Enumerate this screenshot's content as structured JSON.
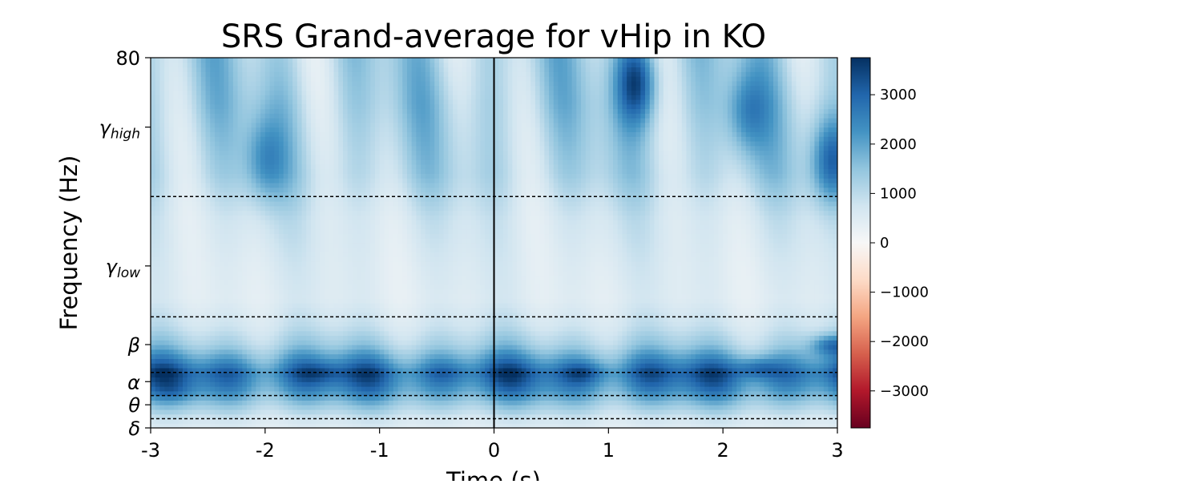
{
  "chart_data": {
    "type": "heatmap",
    "title": "SRS Grand-average for vHip in KO",
    "xlabel": "Time (s)",
    "ylabel": "Frequency (Hz)",
    "xlim": [
      -3,
      3
    ],
    "ylim": [
      0,
      80
    ],
    "x_ticks": [
      {
        "value": -3,
        "label": "-3"
      },
      {
        "value": -2,
        "label": "-2"
      },
      {
        "value": -1,
        "label": "-1"
      },
      {
        "value": 0,
        "label": "0"
      },
      {
        "value": 1,
        "label": "1"
      },
      {
        "value": 2,
        "label": "2"
      },
      {
        "value": 3,
        "label": "3"
      }
    ],
    "y_ticks": [
      {
        "value": 80,
        "label": "80",
        "sub": ""
      },
      {
        "value": 65,
        "label": "γ",
        "sub": "high"
      },
      {
        "value": 35,
        "label": "γ",
        "sub": "low"
      },
      {
        "value": 18,
        "label": "β",
        "sub": ""
      },
      {
        "value": 10,
        "label": "α",
        "sub": ""
      },
      {
        "value": 5,
        "label": "θ",
        "sub": ""
      },
      {
        "value": 0,
        "label": "δ",
        "sub": ""
      }
    ],
    "band_boundaries_hz": [
      2,
      7,
      12,
      24,
      50
    ],
    "event_line_x": 0,
    "colorbar": {
      "colormap": "RdBu",
      "range": [
        -3750,
        3750
      ],
      "ticks": [
        {
          "value": 3000,
          "label": "3000"
        },
        {
          "value": 2000,
          "label": "2000"
        },
        {
          "value": 1000,
          "label": "1000"
        },
        {
          "value": 0,
          "label": "0"
        },
        {
          "value": -1000,
          "label": "−1000"
        },
        {
          "value": -2000,
          "label": "−2000"
        },
        {
          "value": -3000,
          "label": "−3000"
        }
      ]
    },
    "value_profile_by_frequency": [
      {
        "freq": 0,
        "value": 500
      },
      {
        "freq": 2,
        "value": 700
      },
      {
        "freq": 5,
        "value": 1400
      },
      {
        "freq": 8,
        "value": 2300
      },
      {
        "freq": 10,
        "value": 2700
      },
      {
        "freq": 12,
        "value": 3000
      },
      {
        "freq": 15,
        "value": 2100
      },
      {
        "freq": 18,
        "value": 1300
      },
      {
        "freq": 22,
        "value": 800
      },
      {
        "freq": 28,
        "value": 500
      },
      {
        "freq": 35,
        "value": 550
      },
      {
        "freq": 45,
        "value": 700
      },
      {
        "freq": 55,
        "value": 1100
      },
      {
        "freq": 70,
        "value": 1250
      },
      {
        "freq": 80,
        "value": 1200
      }
    ],
    "hotspots": [
      {
        "t": -1.5,
        "f": 12,
        "value": 3400
      },
      {
        "t": -0.4,
        "f": 12,
        "value": 3200
      },
      {
        "t": 0.8,
        "f": 12,
        "value": 3600
      },
      {
        "t": 2.3,
        "f": 13,
        "value": 3700
      },
      {
        "t": 2.95,
        "f": 18,
        "value": 2800
      },
      {
        "t": -2.8,
        "f": 8,
        "value": 2600
      },
      {
        "t": 1.25,
        "f": 75,
        "value": 3500
      },
      {
        "t": 2.95,
        "f": 58,
        "value": 3000
      },
      {
        "t": -2.0,
        "f": 58,
        "value": 2300
      },
      {
        "t": 2.2,
        "f": 68,
        "value": 2400
      }
    ]
  }
}
